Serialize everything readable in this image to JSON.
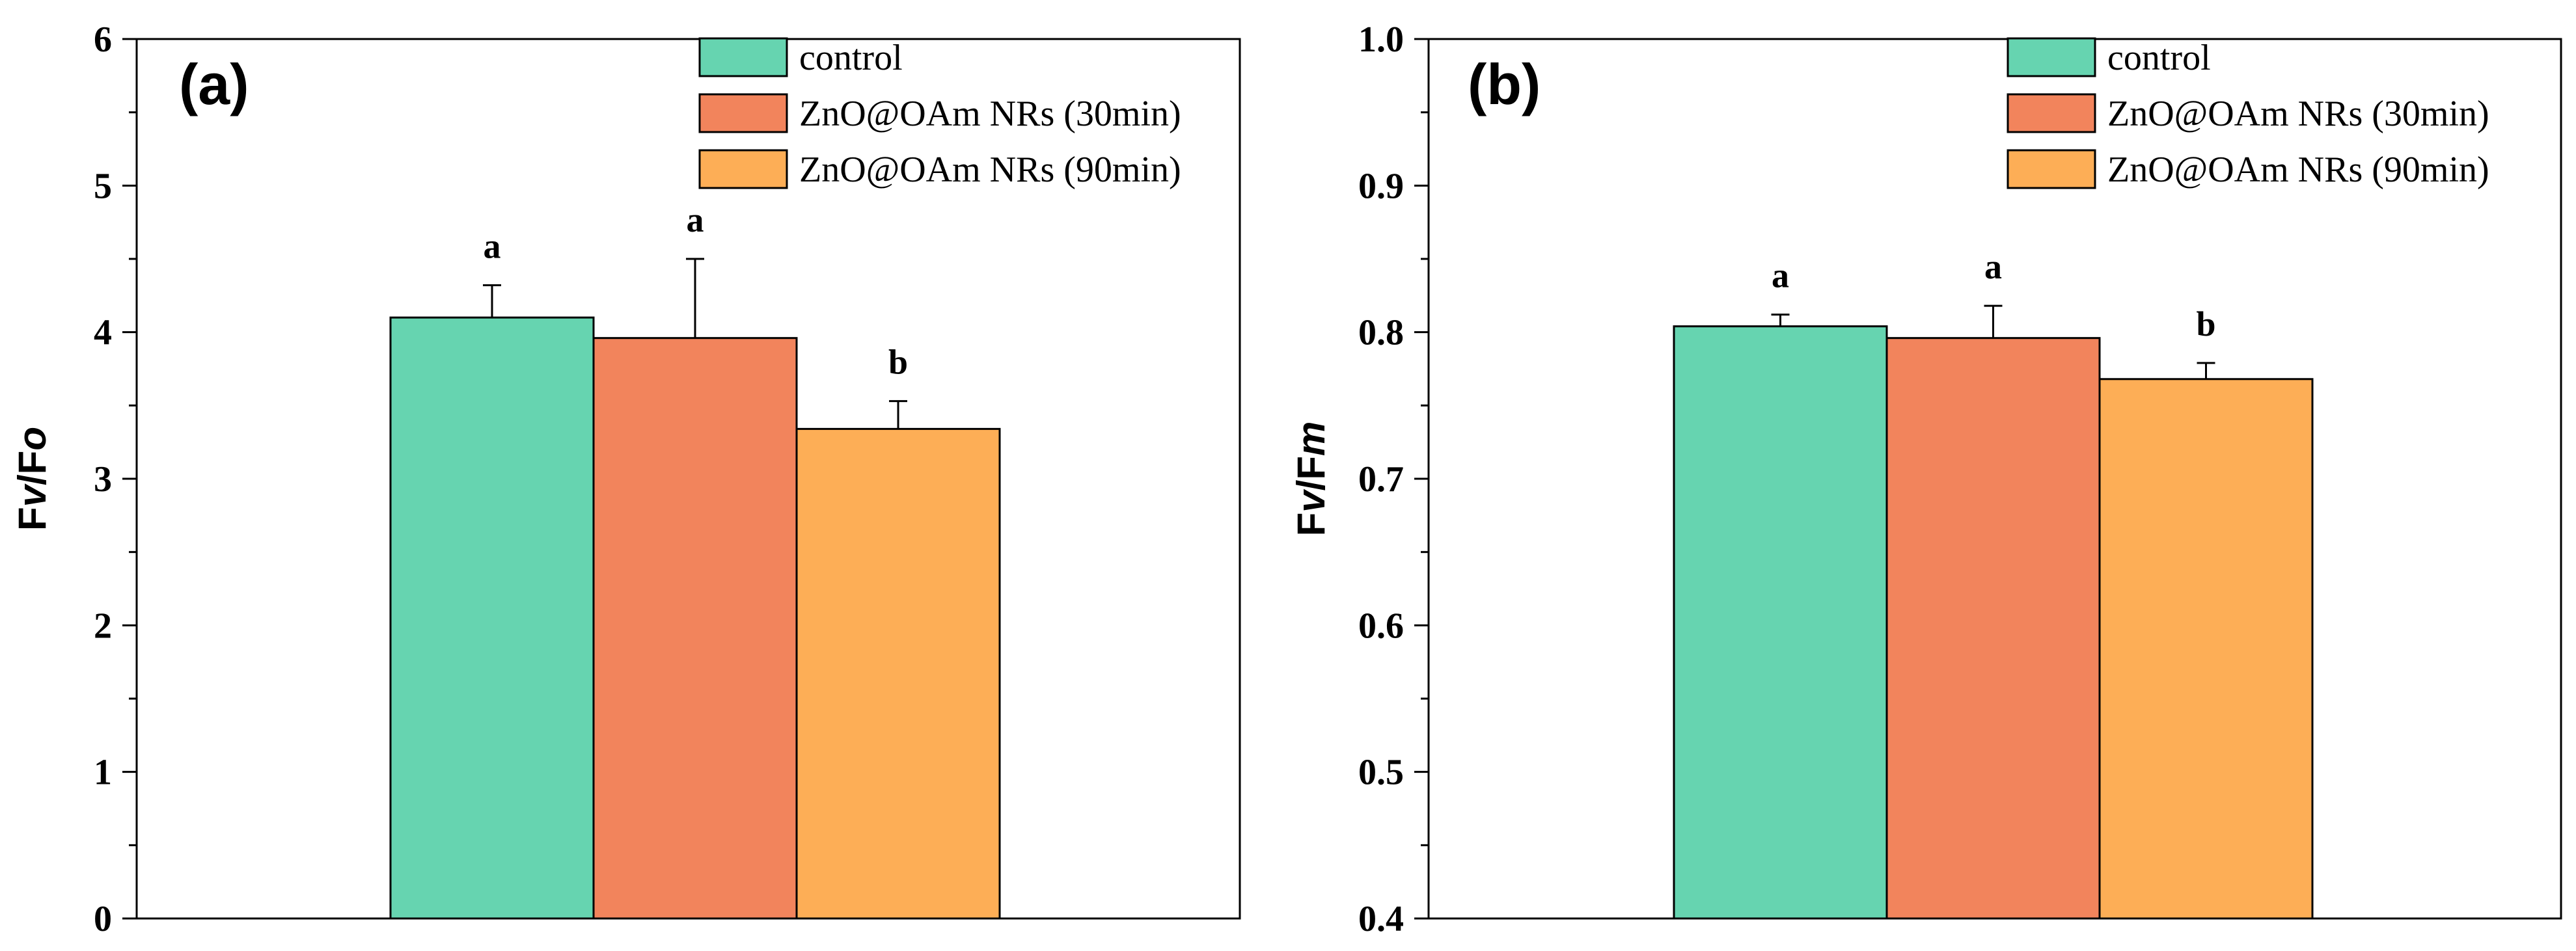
{
  "chart_data": [
    {
      "type": "bar",
      "panel_label": "(a)",
      "ylabel": "Fv/Fo",
      "ylabel_parts": [
        "F",
        "v",
        "/F",
        "o"
      ],
      "ylim": [
        0,
        6
      ],
      "yticks": [
        0,
        1,
        2,
        3,
        4,
        5,
        6
      ],
      "ytick_labels": [
        "0",
        "1",
        "2",
        "3",
        "4",
        "5",
        "6"
      ],
      "xlabel": "",
      "legend_position": "top-right",
      "series": [
        {
          "name": "control",
          "color": "#66D4B0",
          "value": 4.1,
          "error": 0.22,
          "letter": "a"
        },
        {
          "name": "ZnO@OAm NRs (30min)",
          "color": "#F2845C",
          "value": 3.96,
          "error": 0.54,
          "letter": "a"
        },
        {
          "name": "ZnO@OAm NRs (90min)",
          "color": "#FDAE56",
          "value": 3.34,
          "error": 0.19,
          "letter": "b"
        }
      ]
    },
    {
      "type": "bar",
      "panel_label": "(b)",
      "ylabel": "Fv/Fm",
      "ylabel_parts": [
        "F",
        "v",
        "/F",
        "m"
      ],
      "ylim": [
        0.4,
        1.0
      ],
      "yticks": [
        0.4,
        0.5,
        0.6,
        0.7,
        0.8,
        0.9,
        1.0
      ],
      "ytick_labels": [
        "0.4",
        "0.5",
        "0.6",
        "0.7",
        "0.8",
        "0.9",
        "1.0"
      ],
      "xlabel": "",
      "legend_position": "top-right",
      "series": [
        {
          "name": "control",
          "color": "#66D4B0",
          "value": 0.804,
          "error": 0.008,
          "letter": "a"
        },
        {
          "name": "ZnO@OAm NRs (30min)",
          "color": "#F2845C",
          "value": 0.796,
          "error": 0.022,
          "letter": "a"
        },
        {
          "name": "ZnO@OAm NRs (90min)",
          "color": "#FDAE56",
          "value": 0.768,
          "error": 0.011,
          "letter": "b"
        }
      ]
    }
  ]
}
